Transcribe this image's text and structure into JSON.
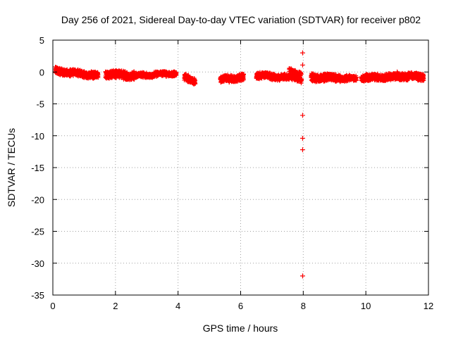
{
  "chart_data": {
    "type": "scatter",
    "title": "Day 256 of 2021, Sidereal Day-to-day VTEC variation (SDTVAR) for receiver p802",
    "xlabel": "GPS time / hours",
    "ylabel": "SDTVAR / TECUs",
    "xlim": [
      0,
      12
    ],
    "ylim": [
      -35,
      5
    ],
    "xticks": [
      0,
      2,
      4,
      6,
      8,
      10,
      12
    ],
    "yticks": [
      5,
      0,
      -5,
      -10,
      -15,
      -20,
      -25,
      -30,
      -35
    ],
    "grid": true,
    "marker": "+",
    "colors": {
      "series": "#ff0000",
      "axis": "#000000",
      "grid": "#a0a0a0"
    },
    "series": [
      {
        "name": "SDTVAR",
        "segments": [
          {
            "x_start": 0.08,
            "x_end": 1.45,
            "y_start": 0.2,
            "y_end": -0.6,
            "spread": 0.45
          },
          {
            "x_start": 1.68,
            "x_end": 2.6,
            "y_start": -0.3,
            "y_end": -0.6,
            "spread": 0.55
          },
          {
            "x_start": 2.6,
            "x_end": 3.95,
            "y_start": -0.6,
            "y_end": -0.2,
            "spread": 0.3
          },
          {
            "x_start": 4.2,
            "x_end": 4.55,
            "y_start": -0.8,
            "y_end": -1.4,
            "spread": 0.45
          },
          {
            "x_start": 5.35,
            "x_end": 6.1,
            "y_start": -1.2,
            "y_end": -0.8,
            "spread": 0.45
          },
          {
            "x_start": 6.5,
            "x_end": 7.55,
            "y_start": -0.5,
            "y_end": -0.9,
            "spread": 0.4
          },
          {
            "x_start": 7.55,
            "x_end": 7.95,
            "y_start": -0.3,
            "y_end": -0.8,
            "spread": 0.8
          },
          {
            "x_start": 8.25,
            "x_end": 9.2,
            "y_start": -0.9,
            "y_end": -0.9,
            "spread": 0.5
          },
          {
            "x_start": 9.2,
            "x_end": 9.7,
            "y_start": -1.0,
            "y_end": -1.0,
            "spread": 0.35
          },
          {
            "x_start": 9.85,
            "x_end": 11.0,
            "y_start": -0.9,
            "y_end": -0.8,
            "spread": 0.45
          },
          {
            "x_start": 11.0,
            "x_end": 11.85,
            "y_start": -0.6,
            "y_end": -0.8,
            "spread": 0.5
          }
        ],
        "outliers": [
          {
            "x": 7.98,
            "y": 3.0
          },
          {
            "x": 7.98,
            "y": 1.1
          },
          {
            "x": 7.98,
            "y": -6.8
          },
          {
            "x": 7.98,
            "y": -10.4
          },
          {
            "x": 7.98,
            "y": -12.2
          },
          {
            "x": 7.98,
            "y": -32.0
          }
        ]
      }
    ]
  }
}
